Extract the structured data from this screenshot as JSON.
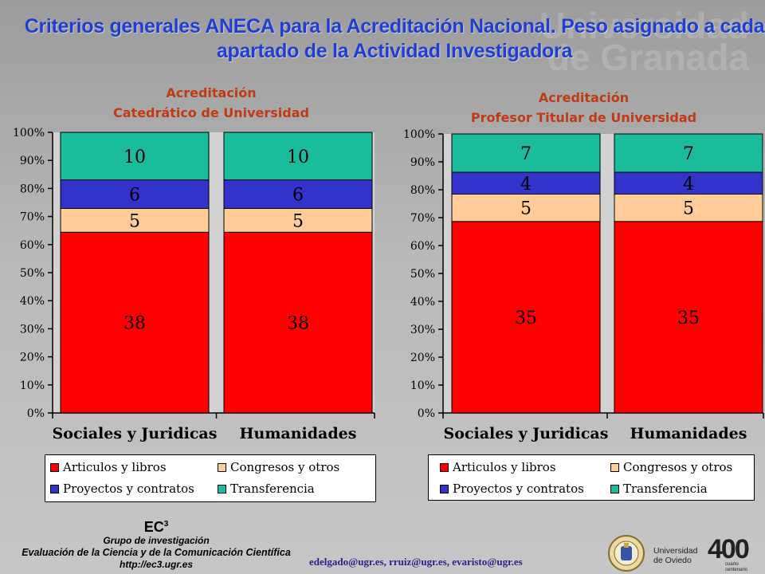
{
  "slide": {
    "title": "Criterios generales ANECA para la Acreditación Nacional. Peso asignado a cada apartado de la Actividad Investigadora"
  },
  "colors": {
    "articulos": "#ff0000",
    "congresos": "#ffcc99",
    "proyectos": "#3333cc",
    "transferencia": "#1abc9c",
    "title": "#1f3fd0",
    "chart_title": "#c03a14"
  },
  "chart_data": [
    {
      "type": "bar",
      "stacked": "percent",
      "title_line1": "Acreditación",
      "title_line2": "Catedrático de Universidad",
      "categories": [
        "Sociales y Juridicas",
        "Humanidades"
      ],
      "y_ticks": [
        "0%",
        "10%",
        "20%",
        "30%",
        "40%",
        "50%",
        "60%",
        "70%",
        "80%",
        "90%",
        "100%"
      ],
      "ylim": [
        0,
        100
      ],
      "series": [
        {
          "name": "Articulos y libros",
          "values": [
            38,
            38
          ]
        },
        {
          "name": "Congresos y otros",
          "values": [
            5,
            5
          ]
        },
        {
          "name": "Proyectos y contratos",
          "values": [
            6,
            6
          ]
        },
        {
          "name": "Transferencia",
          "values": [
            10,
            10
          ]
        }
      ],
      "legend_position": "bottom"
    },
    {
      "type": "bar",
      "stacked": "percent",
      "title_line1": "Acreditación",
      "title_line2": "Profesor Titular de Universidad",
      "categories": [
        "Sociales y Juridicas",
        "Humanidades"
      ],
      "y_ticks": [
        "0%",
        "10%",
        "20%",
        "30%",
        "40%",
        "50%",
        "60%",
        "70%",
        "80%",
        "90%",
        "100%"
      ],
      "ylim": [
        0,
        100
      ],
      "series": [
        {
          "name": "Articulos y libros",
          "values": [
            35,
            35
          ]
        },
        {
          "name": "Congresos y otros",
          "values": [
            5,
            5
          ]
        },
        {
          "name": "Proyectos y contratos",
          "values": [
            4,
            4
          ]
        },
        {
          "name": "Transferencia",
          "values": [
            7,
            7
          ]
        }
      ],
      "legend_position": "bottom"
    }
  ],
  "footer": {
    "ec3": "EC",
    "ec3_sup": "3",
    "group": "Grupo de investigación",
    "evaluation": "Evaluación de la Ciencia y de la Comunicación Científica",
    "url": "http://ec3.ugr.es",
    "emails": "edelgado@ugr.es,  rruiz@ugr.es,  evaristo@ugr.es",
    "uni_line1": "Universidad",
    "uni_line2": "de Oviedo",
    "anniv": "400",
    "anniv_sub1": "cuarto",
    "anniv_sub2": "centenario"
  }
}
